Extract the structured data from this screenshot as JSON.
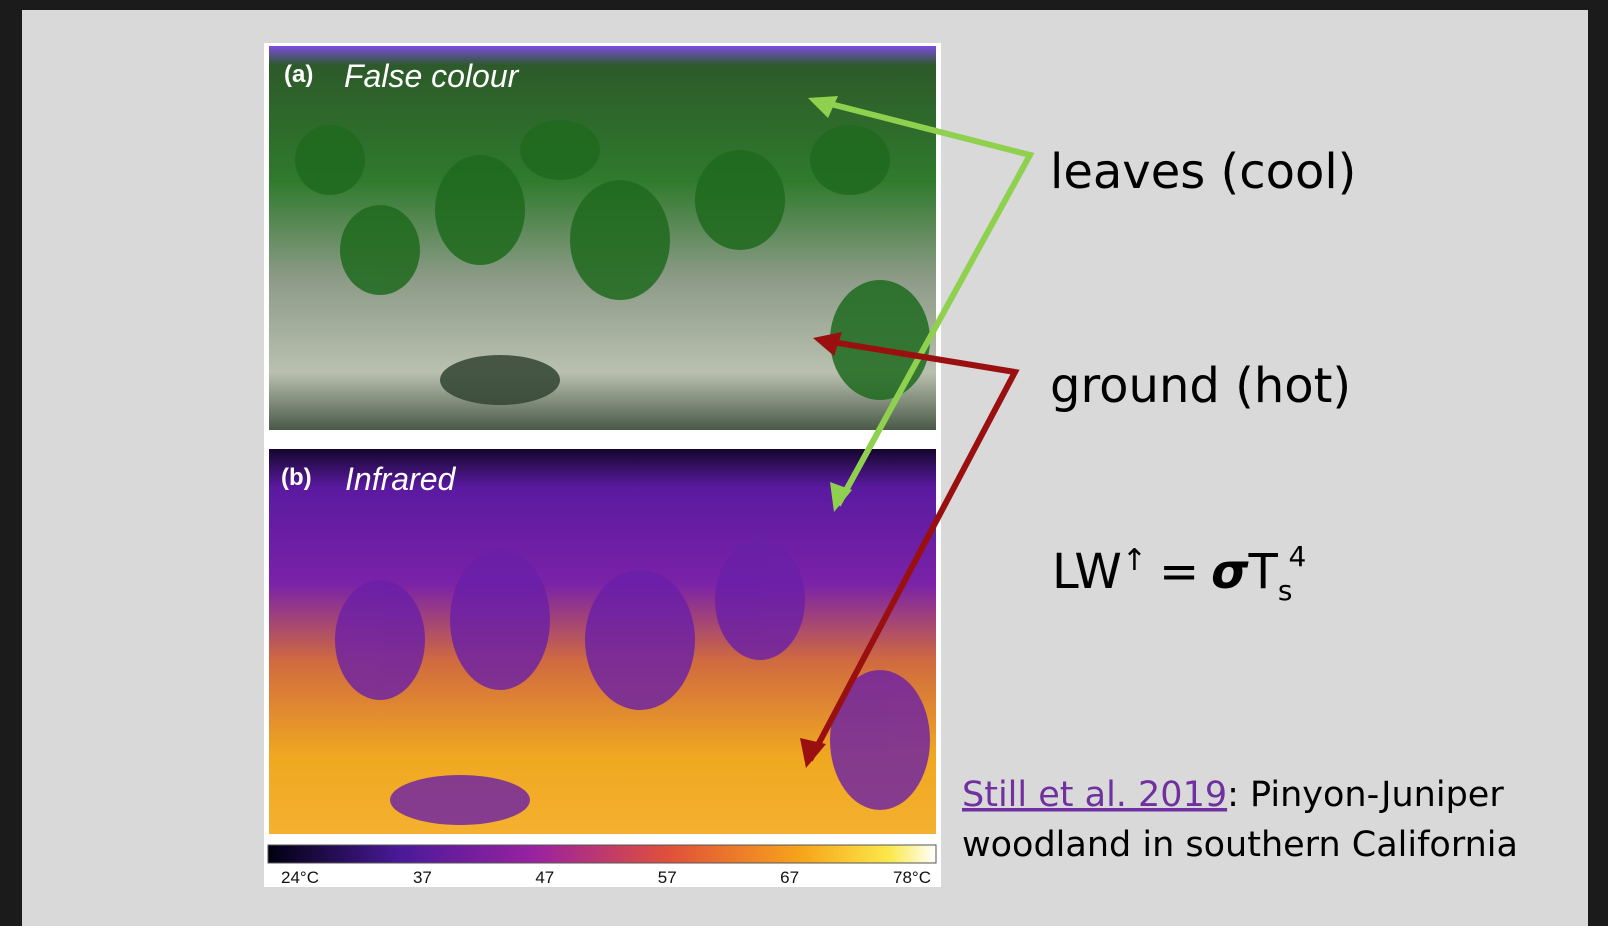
{
  "figure": {
    "panel_a": {
      "label": "(a)",
      "title": "False colour"
    },
    "panel_b": {
      "label": "(b)",
      "title": "Infrared"
    },
    "colorbar_labels": [
      "24°C",
      "37",
      "47",
      "57",
      "67",
      "78°C"
    ]
  },
  "annotations": {
    "leaves": "leaves (cool)",
    "ground": "ground (hot)"
  },
  "equation": {
    "lhs": "LW",
    "arrow": "↑",
    "equals": "=",
    "sigma": "σ",
    "symbol": "T",
    "subscript": "s",
    "exponent": "4"
  },
  "citation": {
    "link": "Still et al. 2019",
    "text_1": ": Pinyon-Juniper",
    "text_2": "woodland in southern California"
  }
}
